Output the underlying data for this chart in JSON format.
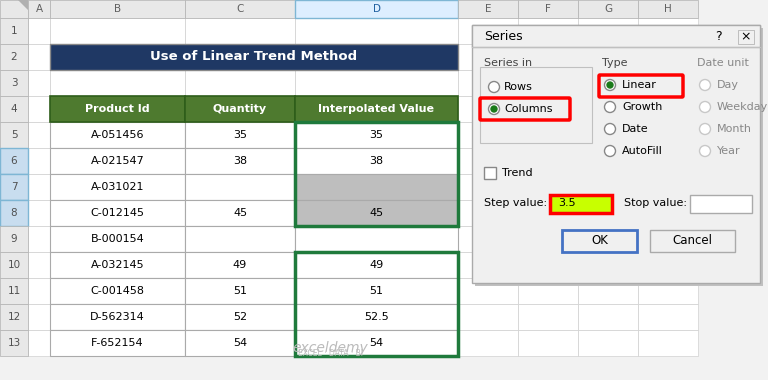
{
  "title": "Use of Linear Trend Method",
  "title_bg": "#1F3864",
  "title_fg": "#FFFFFF",
  "header_bg": "#4E7A2F",
  "header_fg": "#FFFFFF",
  "rows": [
    [
      "A-051456",
      "35",
      "35"
    ],
    [
      "A-021547",
      "38",
      "38"
    ],
    [
      "A-031021",
      "",
      ""
    ],
    [
      "C-012145",
      "45",
      "45"
    ],
    [
      "B-000154",
      "",
      ""
    ],
    [
      "A-032145",
      "49",
      "49"
    ],
    [
      "C-001458",
      "51",
      "51"
    ],
    [
      "D-562314",
      "52",
      "52.5"
    ],
    [
      "F-652154",
      "54",
      "54"
    ]
  ],
  "excel_bg": "#F2F2F2",
  "cell_bg": "#FFFFFF",
  "gray_cell_bg": "#BEBEBE",
  "col_header_bg": "#E8E8E8",
  "col_header_sel_bg": "#DDEEFF",
  "col_header_sel_fg": "#2060A0",
  "row_num_sel_bg": "#C8DDEF",
  "dialog_bg": "#F0F0F0",
  "green_border": "#1F7A3C",
  "watermark": "exceldemy",
  "watermark2": "EXCEL · DATA · BI"
}
